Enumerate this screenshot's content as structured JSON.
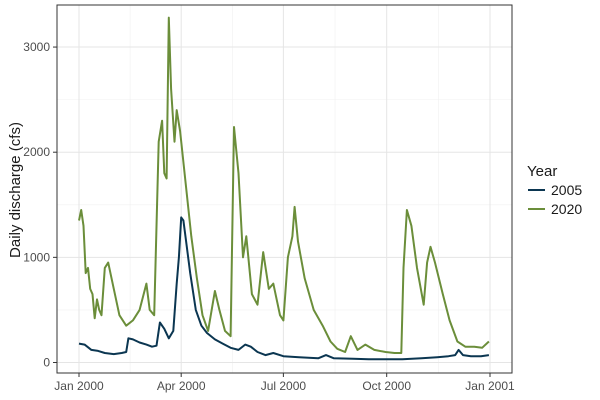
{
  "chart_data": {
    "type": "line",
    "xlabel": "",
    "ylabel": "Daily discharge (cfs)",
    "x_ticks": [
      "Jan 2000",
      "Apr 2000",
      "Jul 2000",
      "Oct 2000",
      "Jan 2001"
    ],
    "y_ticks": [
      0,
      1000,
      2000,
      3000
    ],
    "xlim": [
      "2000-01-01",
      "2001-01-01"
    ],
    "ylim": [
      -100,
      3400
    ],
    "grid": true,
    "legend": {
      "title": "Year",
      "position": "right"
    },
    "series": [
      {
        "name": "2005",
        "color": "#0b3651",
        "points": [
          [
            "2000-01-01",
            180
          ],
          [
            "2000-01-06",
            170
          ],
          [
            "2000-01-12",
            120
          ],
          [
            "2000-01-18",
            110
          ],
          [
            "2000-01-24",
            90
          ],
          [
            "2000-02-01",
            80
          ],
          [
            "2000-02-08",
            90
          ],
          [
            "2000-02-12",
            100
          ],
          [
            "2000-02-14",
            230
          ],
          [
            "2000-02-18",
            220
          ],
          [
            "2000-02-24",
            190
          ],
          [
            "2000-03-01",
            170
          ],
          [
            "2000-03-06",
            150
          ],
          [
            "2000-03-10",
            160
          ],
          [
            "2000-03-13",
            380
          ],
          [
            "2000-03-17",
            320
          ],
          [
            "2000-03-21",
            230
          ],
          [
            "2000-03-25",
            300
          ],
          [
            "2000-03-28",
            750
          ],
          [
            "2000-03-30",
            1000
          ],
          [
            "2000-04-01",
            1380
          ],
          [
            "2000-04-03",
            1350
          ],
          [
            "2000-04-06",
            1100
          ],
          [
            "2000-04-09",
            850
          ],
          [
            "2000-04-14",
            500
          ],
          [
            "2000-04-19",
            350
          ],
          [
            "2000-04-24",
            280
          ],
          [
            "2000-05-01",
            220
          ],
          [
            "2000-05-08",
            180
          ],
          [
            "2000-05-15",
            140
          ],
          [
            "2000-05-22",
            120
          ],
          [
            "2000-05-28",
            170
          ],
          [
            "2000-06-02",
            150
          ],
          [
            "2000-06-08",
            100
          ],
          [
            "2000-06-15",
            70
          ],
          [
            "2000-06-22",
            90
          ],
          [
            "2000-07-01",
            60
          ],
          [
            "2000-07-15",
            50
          ],
          [
            "2000-08-01",
            40
          ],
          [
            "2000-08-08",
            70
          ],
          [
            "2000-08-15",
            40
          ],
          [
            "2000-09-01",
            35
          ],
          [
            "2000-09-15",
            30
          ],
          [
            "2000-10-01",
            30
          ],
          [
            "2000-10-15",
            30
          ],
          [
            "2000-11-01",
            40
          ],
          [
            "2000-11-15",
            50
          ],
          [
            "2000-11-25",
            60
          ],
          [
            "2000-12-01",
            70
          ],
          [
            "2000-12-04",
            120
          ],
          [
            "2000-12-08",
            70
          ],
          [
            "2000-12-15",
            60
          ],
          [
            "2000-12-24",
            60
          ],
          [
            "2000-12-31",
            70
          ]
        ]
      },
      {
        "name": "2020",
        "color": "#6b8e3a",
        "points": [
          [
            "2000-01-01",
            1350
          ],
          [
            "2000-01-03",
            1450
          ],
          [
            "2000-01-05",
            1300
          ],
          [
            "2000-01-07",
            850
          ],
          [
            "2000-01-09",
            900
          ],
          [
            "2000-01-11",
            700
          ],
          [
            "2000-01-13",
            650
          ],
          [
            "2000-01-15",
            420
          ],
          [
            "2000-01-17",
            600
          ],
          [
            "2000-01-19",
            500
          ],
          [
            "2000-01-21",
            450
          ],
          [
            "2000-01-24",
            900
          ],
          [
            "2000-01-27",
            950
          ],
          [
            "2000-02-01",
            700
          ],
          [
            "2000-02-06",
            450
          ],
          [
            "2000-02-12",
            350
          ],
          [
            "2000-02-18",
            400
          ],
          [
            "2000-02-24",
            500
          ],
          [
            "2000-03-01",
            750
          ],
          [
            "2000-03-04",
            500
          ],
          [
            "2000-03-08",
            450
          ],
          [
            "2000-03-12",
            2100
          ],
          [
            "2000-03-15",
            2300
          ],
          [
            "2000-03-17",
            1800
          ],
          [
            "2000-03-19",
            1750
          ],
          [
            "2000-03-21",
            3280
          ],
          [
            "2000-03-23",
            2600
          ],
          [
            "2000-03-26",
            2100
          ],
          [
            "2000-03-28",
            2400
          ],
          [
            "2000-03-31",
            2200
          ],
          [
            "2000-04-05",
            1700
          ],
          [
            "2000-04-10",
            1200
          ],
          [
            "2000-04-15",
            800
          ],
          [
            "2000-04-20",
            450
          ],
          [
            "2000-04-25",
            300
          ],
          [
            "2000-05-01",
            680
          ],
          [
            "2000-05-05",
            500
          ],
          [
            "2000-05-10",
            300
          ],
          [
            "2000-05-15",
            250
          ],
          [
            "2000-05-18",
            2240
          ],
          [
            "2000-05-22",
            1800
          ],
          [
            "2000-05-26",
            1000
          ],
          [
            "2000-05-29",
            1200
          ],
          [
            "2000-06-03",
            650
          ],
          [
            "2000-06-08",
            550
          ],
          [
            "2000-06-13",
            1050
          ],
          [
            "2000-06-18",
            700
          ],
          [
            "2000-06-22",
            750
          ],
          [
            "2000-06-28",
            450
          ],
          [
            "2000-07-01",
            400
          ],
          [
            "2000-07-05",
            1000
          ],
          [
            "2000-07-09",
            1200
          ],
          [
            "2000-07-11",
            1480
          ],
          [
            "2000-07-14",
            1150
          ],
          [
            "2000-07-20",
            800
          ],
          [
            "2000-07-28",
            500
          ],
          [
            "2000-08-05",
            350
          ],
          [
            "2000-08-12",
            200
          ],
          [
            "2000-08-18",
            130
          ],
          [
            "2000-08-25",
            100
          ],
          [
            "2000-08-30",
            250
          ],
          [
            "2000-09-05",
            120
          ],
          [
            "2000-09-12",
            170
          ],
          [
            "2000-09-20",
            120
          ],
          [
            "2000-09-30",
            100
          ],
          [
            "2000-10-08",
            90
          ],
          [
            "2000-10-14",
            90
          ],
          [
            "2000-10-16",
            900
          ],
          [
            "2000-10-19",
            1450
          ],
          [
            "2000-10-23",
            1300
          ],
          [
            "2000-10-28",
            900
          ],
          [
            "2000-11-03",
            550
          ],
          [
            "2000-11-06",
            950
          ],
          [
            "2000-11-09",
            1100
          ],
          [
            "2000-11-13",
            950
          ],
          [
            "2000-11-20",
            650
          ],
          [
            "2000-11-26",
            400
          ],
          [
            "2000-12-03",
            200
          ],
          [
            "2000-12-10",
            150
          ],
          [
            "2000-12-18",
            150
          ],
          [
            "2000-12-25",
            140
          ],
          [
            "2000-12-31",
            200
          ]
        ]
      }
    ]
  }
}
